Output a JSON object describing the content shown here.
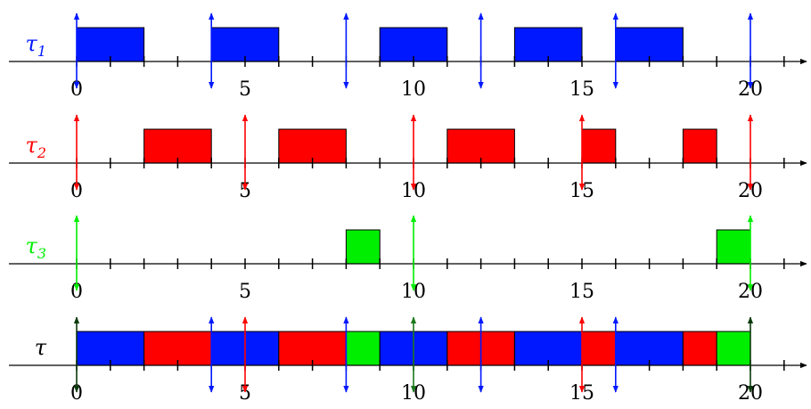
{
  "x_axis": {
    "min": 0,
    "max": 22,
    "tick_step": 1,
    "labeled_ticks": [
      0,
      5,
      10,
      15,
      20
    ]
  },
  "rows": [
    {
      "id": "tau1",
      "label": {
        "symbol": "τ",
        "sub": "1"
      },
      "color": "#0018ff",
      "blocks": [
        [
          0,
          2
        ],
        [
          4,
          6
        ],
        [
          9,
          11
        ],
        [
          13,
          15
        ],
        [
          16,
          18
        ]
      ],
      "events": [
        {
          "t": 0,
          "type": "both"
        },
        {
          "t": 4,
          "type": "both"
        },
        {
          "t": 8,
          "type": "both"
        },
        {
          "t": 12,
          "type": "both"
        },
        {
          "t": 16,
          "type": "both"
        },
        {
          "t": 20,
          "type": "both"
        }
      ]
    },
    {
      "id": "tau2",
      "label": {
        "symbol": "τ",
        "sub": "2"
      },
      "color": "#ff0000",
      "blocks": [
        [
          2,
          4
        ],
        [
          6,
          8
        ],
        [
          11,
          13
        ],
        [
          15,
          16
        ],
        [
          18,
          19
        ]
      ],
      "events": [
        {
          "t": 0,
          "type": "both"
        },
        {
          "t": 5,
          "type": "both"
        },
        {
          "t": 10,
          "type": "both"
        },
        {
          "t": 15,
          "type": "both"
        },
        {
          "t": 20,
          "type": "both"
        }
      ]
    },
    {
      "id": "tau3",
      "label": {
        "symbol": "τ",
        "sub": "3"
      },
      "color": "#00ee00",
      "blocks": [
        [
          8,
          9
        ],
        [
          19,
          20
        ]
      ],
      "events": [
        {
          "t": 0,
          "type": "both"
        },
        {
          "t": 10,
          "type": "both"
        },
        {
          "t": 20,
          "type": "both"
        }
      ]
    },
    {
      "id": "tau",
      "label": {
        "symbol": "τ",
        "sub": ""
      },
      "color": "#000000",
      "blocks": [
        {
          "s": 0,
          "e": 2,
          "c": "#0018ff"
        },
        {
          "s": 2,
          "e": 4,
          "c": "#ff0000"
        },
        {
          "s": 4,
          "e": 6,
          "c": "#0018ff"
        },
        {
          "s": 6,
          "e": 8,
          "c": "#ff0000"
        },
        {
          "s": 8,
          "e": 9,
          "c": "#00ee00"
        },
        {
          "s": 9,
          "e": 11,
          "c": "#0018ff"
        },
        {
          "s": 11,
          "e": 13,
          "c": "#ff0000"
        },
        {
          "s": 13,
          "e": 15,
          "c": "#0018ff"
        },
        {
          "s": 15,
          "e": 16,
          "c": "#ff0000"
        },
        {
          "s": 16,
          "e": 18,
          "c": "#0018ff"
        },
        {
          "s": 18,
          "e": 19,
          "c": "#ff0000"
        },
        {
          "s": 19,
          "e": 20,
          "c": "#00ee00"
        }
      ],
      "events": [
        {
          "t": 0,
          "type": "both",
          "c": "#0a3a0a"
        },
        {
          "t": 4,
          "type": "both",
          "c": "#0018ff"
        },
        {
          "t": 5,
          "type": "both",
          "c": "#ff0000"
        },
        {
          "t": 8,
          "type": "both",
          "c": "#0018ff"
        },
        {
          "t": 10,
          "type": "both",
          "c": "#1c7a1c"
        },
        {
          "t": 12,
          "type": "both",
          "c": "#0018ff"
        },
        {
          "t": 15,
          "type": "both",
          "c": "#ff0000"
        },
        {
          "t": 16,
          "type": "both",
          "c": "#0018ff"
        },
        {
          "t": 20,
          "type": "both",
          "c": "#0a3a0a"
        }
      ]
    }
  ]
}
